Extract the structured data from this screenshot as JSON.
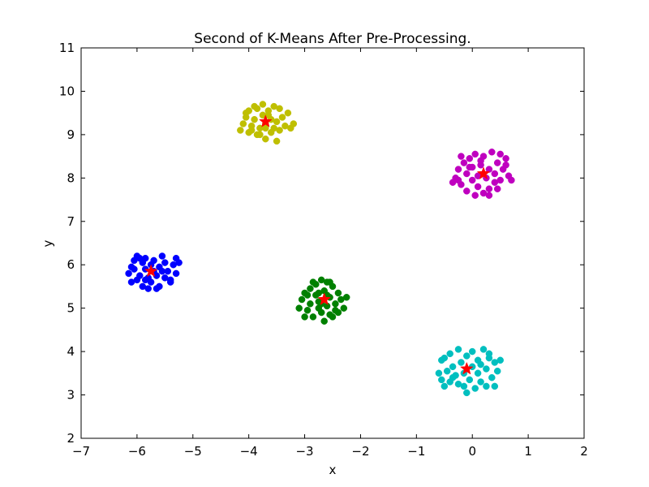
{
  "chart_data": {
    "type": "scatter",
    "title": "Second of K-Means After Pre-Processing.",
    "xlabel": "x",
    "ylabel": "y",
    "xlim": [
      -7,
      2
    ],
    "ylim": [
      2,
      11
    ],
    "xticks": [
      -7,
      -6,
      -5,
      -4,
      -3,
      -2,
      -1,
      0,
      1,
      2
    ],
    "xtick_labels": [
      "−7",
      "−6",
      "−5",
      "−4",
      "−3",
      "−2",
      "−1",
      "0",
      "1",
      "2"
    ],
    "yticks": [
      2,
      3,
      4,
      5,
      6,
      7,
      8,
      9,
      10,
      11
    ],
    "ytick_labels": [
      "2",
      "3",
      "4",
      "5",
      "6",
      "7",
      "8",
      "9",
      "10",
      "11"
    ],
    "grid": false,
    "clusters": [
      {
        "color": "#0000ff",
        "center": [
          -5.75,
          5.85
        ],
        "points": [
          [
            -6.15,
            5.8
          ],
          [
            -6.1,
            5.95
          ],
          [
            -6.05,
            6.1
          ],
          [
            -6.0,
            5.65
          ],
          [
            -6.0,
            6.2
          ],
          [
            -5.95,
            5.75
          ],
          [
            -5.9,
            5.5
          ],
          [
            -5.9,
            6.05
          ],
          [
            -5.85,
            5.9
          ],
          [
            -5.85,
            6.15
          ],
          [
            -5.8,
            5.45
          ],
          [
            -5.8,
            5.7
          ],
          [
            -5.75,
            6.0
          ],
          [
            -5.75,
            5.6
          ],
          [
            -5.7,
            5.85
          ],
          [
            -5.7,
            6.1
          ],
          [
            -5.65,
            5.75
          ],
          [
            -5.6,
            5.5
          ],
          [
            -5.6,
            5.95
          ],
          [
            -5.55,
            6.2
          ],
          [
            -5.5,
            5.7
          ],
          [
            -5.5,
            6.05
          ],
          [
            -5.45,
            5.85
          ],
          [
            -5.4,
            5.6
          ],
          [
            -5.35,
            6.0
          ],
          [
            -5.3,
            5.8
          ],
          [
            -5.3,
            6.15
          ],
          [
            -5.25,
            6.05
          ],
          [
            -5.4,
            5.65
          ],
          [
            -6.05,
            5.9
          ],
          [
            -5.95,
            6.15
          ],
          [
            -5.65,
            5.45
          ],
          [
            -6.1,
            5.6
          ],
          [
            -5.55,
            5.85
          ],
          [
            -5.85,
            5.65
          ]
        ]
      },
      {
        "color": "#008000",
        "center": [
          -2.65,
          5.2
        ],
        "points": [
          [
            -3.1,
            5.0
          ],
          [
            -3.05,
            5.2
          ],
          [
            -3.0,
            5.35
          ],
          [
            -2.95,
            4.95
          ],
          [
            -2.9,
            5.1
          ],
          [
            -2.9,
            5.45
          ],
          [
            -2.85,
            4.8
          ],
          [
            -2.8,
            5.3
          ],
          [
            -2.8,
            5.55
          ],
          [
            -2.75,
            5.0
          ],
          [
            -2.75,
            5.15
          ],
          [
            -2.7,
            5.65
          ],
          [
            -2.7,
            4.9
          ],
          [
            -2.65,
            5.4
          ],
          [
            -2.6,
            5.05
          ],
          [
            -2.6,
            5.6
          ],
          [
            -2.55,
            5.25
          ],
          [
            -2.55,
            4.85
          ],
          [
            -2.5,
            5.5
          ],
          [
            -2.45,
            5.1
          ],
          [
            -2.45,
            4.95
          ],
          [
            -2.4,
            5.35
          ],
          [
            -2.35,
            5.2
          ],
          [
            -2.3,
            5.0
          ],
          [
            -2.25,
            5.25
          ],
          [
            -2.65,
            4.7
          ],
          [
            -2.5,
            4.8
          ],
          [
            -2.95,
            5.3
          ],
          [
            -2.85,
            5.6
          ],
          [
            -2.6,
            5.3
          ],
          [
            -2.4,
            4.9
          ],
          [
            -2.75,
            5.35
          ],
          [
            -3.0,
            4.8
          ],
          [
            -2.7,
            5.1
          ],
          [
            -2.55,
            5.6
          ]
        ]
      },
      {
        "color": "#bfbf00",
        "center": [
          -3.7,
          9.3
        ],
        "points": [
          [
            -4.15,
            9.1
          ],
          [
            -4.1,
            9.25
          ],
          [
            -4.05,
            9.4
          ],
          [
            -4.0,
            9.05
          ],
          [
            -4.0,
            9.55
          ],
          [
            -3.95,
            9.2
          ],
          [
            -3.9,
            9.35
          ],
          [
            -3.85,
            9.0
          ],
          [
            -3.85,
            9.6
          ],
          [
            -3.8,
            9.15
          ],
          [
            -3.75,
            9.45
          ],
          [
            -3.75,
            9.7
          ],
          [
            -3.7,
            8.9
          ],
          [
            -3.7,
            9.25
          ],
          [
            -3.65,
            9.55
          ],
          [
            -3.6,
            9.05
          ],
          [
            -3.6,
            9.35
          ],
          [
            -3.55,
            9.15
          ],
          [
            -3.55,
            9.65
          ],
          [
            -3.5,
            9.3
          ],
          [
            -3.5,
            8.85
          ],
          [
            -3.45,
            9.1
          ],
          [
            -3.4,
            9.4
          ],
          [
            -3.35,
            9.2
          ],
          [
            -3.3,
            9.5
          ],
          [
            -3.25,
            9.15
          ],
          [
            -3.2,
            9.25
          ],
          [
            -3.9,
            9.65
          ],
          [
            -4.05,
            9.5
          ],
          [
            -3.8,
            9.0
          ],
          [
            -3.65,
            9.45
          ],
          [
            -3.45,
            9.6
          ],
          [
            -3.95,
            9.1
          ],
          [
            -3.7,
            9.15
          ]
        ]
      },
      {
        "color": "#bf00bf",
        "center": [
          0.2,
          8.1
        ],
        "points": [
          [
            -0.35,
            7.9
          ],
          [
            -0.3,
            8.0
          ],
          [
            -0.25,
            8.2
          ],
          [
            -0.2,
            8.5
          ],
          [
            -0.2,
            7.85
          ],
          [
            -0.15,
            8.35
          ],
          [
            -0.1,
            7.7
          ],
          [
            -0.1,
            8.1
          ],
          [
            -0.05,
            8.45
          ],
          [
            0.0,
            7.95
          ],
          [
            0.0,
            8.25
          ],
          [
            0.05,
            7.6
          ],
          [
            0.05,
            8.55
          ],
          [
            0.1,
            8.05
          ],
          [
            0.1,
            7.8
          ],
          [
            0.15,
            8.3
          ],
          [
            0.2,
            7.65
          ],
          [
            0.2,
            8.5
          ],
          [
            0.25,
            8.0
          ],
          [
            0.3,
            8.2
          ],
          [
            0.3,
            7.75
          ],
          [
            0.35,
            8.6
          ],
          [
            0.4,
            8.1
          ],
          [
            0.4,
            7.9
          ],
          [
            0.45,
            8.35
          ],
          [
            0.5,
            7.95
          ],
          [
            0.55,
            8.2
          ],
          [
            0.6,
            8.45
          ],
          [
            0.65,
            8.05
          ],
          [
            0.7,
            7.95
          ],
          [
            0.5,
            8.55
          ],
          [
            0.3,
            7.6
          ],
          [
            -0.25,
            7.95
          ],
          [
            0.15,
            8.4
          ],
          [
            0.45,
            7.75
          ],
          [
            0.6,
            8.3
          ],
          [
            -0.05,
            8.25
          ]
        ]
      },
      {
        "color": "#00bfbf",
        "center": [
          -0.1,
          3.6
        ],
        "points": [
          [
            -0.6,
            3.5
          ],
          [
            -0.55,
            3.35
          ],
          [
            -0.55,
            3.8
          ],
          [
            -0.5,
            3.2
          ],
          [
            -0.45,
            3.55
          ],
          [
            -0.4,
            3.95
          ],
          [
            -0.4,
            3.3
          ],
          [
            -0.35,
            3.65
          ],
          [
            -0.3,
            3.45
          ],
          [
            -0.25,
            4.05
          ],
          [
            -0.25,
            3.25
          ],
          [
            -0.2,
            3.75
          ],
          [
            -0.15,
            3.5
          ],
          [
            -0.1,
            3.05
          ],
          [
            -0.1,
            3.9
          ],
          [
            -0.05,
            3.35
          ],
          [
            0.0,
            3.65
          ],
          [
            0.0,
            4.0
          ],
          [
            0.05,
            3.15
          ],
          [
            0.1,
            3.5
          ],
          [
            0.1,
            3.8
          ],
          [
            0.15,
            3.3
          ],
          [
            0.2,
            4.05
          ],
          [
            0.25,
            3.6
          ],
          [
            0.25,
            3.2
          ],
          [
            0.3,
            3.85
          ],
          [
            0.35,
            3.4
          ],
          [
            0.4,
            3.75
          ],
          [
            0.45,
            3.55
          ],
          [
            0.5,
            3.8
          ],
          [
            0.4,
            3.2
          ],
          [
            -0.5,
            3.85
          ],
          [
            0.3,
            3.95
          ],
          [
            -0.15,
            3.2
          ],
          [
            0.15,
            3.7
          ],
          [
            -0.35,
            3.4
          ]
        ]
      }
    ]
  }
}
